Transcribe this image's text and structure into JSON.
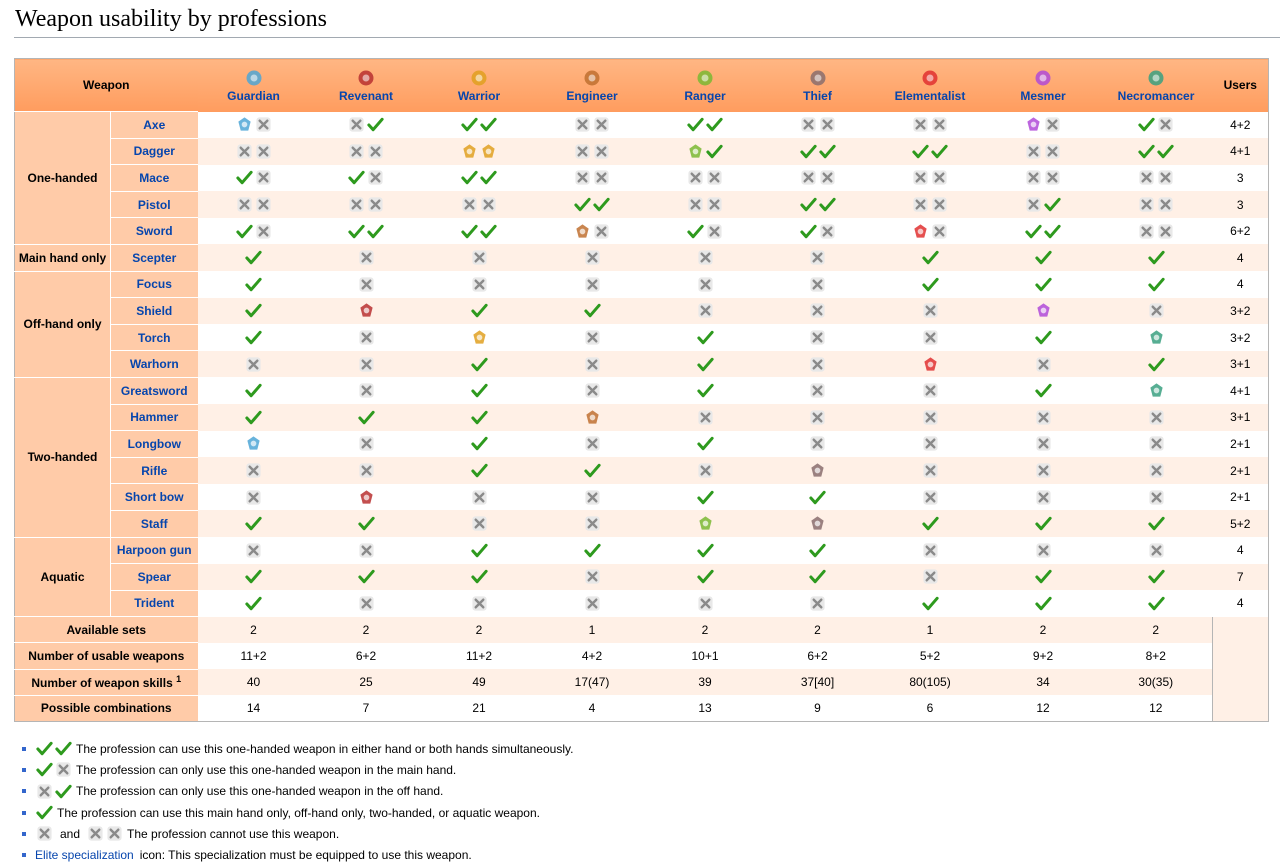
{
  "page": {
    "title": "Weapon usability by professions"
  },
  "table": {
    "weapon_header": "Weapon",
    "users_header": "Users",
    "professions": [
      {
        "name": "Guardian",
        "color": "#4da6d6",
        "icon": "guardian-icon"
      },
      {
        "name": "Revenant",
        "color": "#b83030",
        "icon": "revenant-icon"
      },
      {
        "name": "Warrior",
        "color": "#e0a020",
        "icon": "warrior-icon"
      },
      {
        "name": "Engineer",
        "color": "#c07030",
        "icon": "engineer-icon"
      },
      {
        "name": "Ranger",
        "color": "#7ab832",
        "icon": "ranger-icon"
      },
      {
        "name": "Thief",
        "color": "#8a6d6d",
        "icon": "thief-icon"
      },
      {
        "name": "Elementalist",
        "color": "#e03030",
        "icon": "elementalist-icon"
      },
      {
        "name": "Mesmer",
        "color": "#b04ad8",
        "icon": "mesmer-icon"
      },
      {
        "name": "Necromancer",
        "color": "#3aa080",
        "icon": "necromancer-icon"
      }
    ],
    "groups": [
      {
        "name": "One-handed",
        "rows": [
          {
            "weapon": "Axe",
            "users": "4+2",
            "cells": [
              [
                "E:#4da6d6",
                "X"
              ],
              [
                "X",
                "Y"
              ],
              [
                "Y",
                "Y"
              ],
              [
                "X",
                "X"
              ],
              [
                "Y",
                "Y"
              ],
              [
                "X",
                "X"
              ],
              [
                "X",
                "X"
              ],
              [
                "E:#b04ad8",
                "X"
              ],
              [
                "Y",
                "X"
              ]
            ]
          },
          {
            "weapon": "Dagger",
            "users": "4+1",
            "cells": [
              [
                "X",
                "X"
              ],
              [
                "X",
                "X"
              ],
              [
                "E:#e0a020",
                "E:#e0a020"
              ],
              [
                "X",
                "X"
              ],
              [
                "E:#7ab832",
                "Y"
              ],
              [
                "Y",
                "Y"
              ],
              [
                "Y",
                "Y"
              ],
              [
                "X",
                "X"
              ],
              [
                "Y",
                "Y"
              ]
            ]
          },
          {
            "weapon": "Mace",
            "users": "3",
            "cells": [
              [
                "Y",
                "X"
              ],
              [
                "Y",
                "X"
              ],
              [
                "Y",
                "Y"
              ],
              [
                "X",
                "X"
              ],
              [
                "X",
                "X"
              ],
              [
                "X",
                "X"
              ],
              [
                "X",
                "X"
              ],
              [
                "X",
                "X"
              ],
              [
                "X",
                "X"
              ]
            ]
          },
          {
            "weapon": "Pistol",
            "users": "3",
            "cells": [
              [
                "X",
                "X"
              ],
              [
                "X",
                "X"
              ],
              [
                "X",
                "X"
              ],
              [
                "Y",
                "Y"
              ],
              [
                "X",
                "X"
              ],
              [
                "Y",
                "Y"
              ],
              [
                "X",
                "X"
              ],
              [
                "X",
                "Y"
              ],
              [
                "X",
                "X"
              ]
            ]
          },
          {
            "weapon": "Sword",
            "users": "6+2",
            "cells": [
              [
                "Y",
                "X"
              ],
              [
                "Y",
                "Y"
              ],
              [
                "Y",
                "Y"
              ],
              [
                "E:#c07030",
                "X"
              ],
              [
                "Y",
                "X"
              ],
              [
                "Y",
                "X"
              ],
              [
                "E:#e03030",
                "X"
              ],
              [
                "Y",
                "Y"
              ],
              [
                "X",
                "X"
              ]
            ]
          }
        ]
      },
      {
        "name": "Main hand only",
        "rows": [
          {
            "weapon": "Scepter",
            "users": "4",
            "cells": [
              [
                "Y"
              ],
              [
                "X"
              ],
              [
                "X"
              ],
              [
                "X"
              ],
              [
                "X"
              ],
              [
                "X"
              ],
              [
                "Y"
              ],
              [
                "Y"
              ],
              [
                "Y"
              ]
            ]
          }
        ]
      },
      {
        "name": "Off-hand only",
        "rows": [
          {
            "weapon": "Focus",
            "users": "4",
            "cells": [
              [
                "Y"
              ],
              [
                "X"
              ],
              [
                "X"
              ],
              [
                "X"
              ],
              [
                "X"
              ],
              [
                "X"
              ],
              [
                "Y"
              ],
              [
                "Y"
              ],
              [
                "Y"
              ]
            ]
          },
          {
            "weapon": "Shield",
            "users": "3+2",
            "cells": [
              [
                "Y"
              ],
              [
                "E:#b83030"
              ],
              [
                "Y"
              ],
              [
                "Y"
              ],
              [
                "X"
              ],
              [
                "X"
              ],
              [
                "X"
              ],
              [
                "E:#b04ad8"
              ],
              [
                "X"
              ]
            ]
          },
          {
            "weapon": "Torch",
            "users": "3+2",
            "cells": [
              [
                "Y"
              ],
              [
                "X"
              ],
              [
                "E:#e0a020"
              ],
              [
                "X"
              ],
              [
                "Y"
              ],
              [
                "X"
              ],
              [
                "X"
              ],
              [
                "Y"
              ],
              [
                "E:#3aa080"
              ]
            ]
          },
          {
            "weapon": "Warhorn",
            "users": "3+1",
            "cells": [
              [
                "X"
              ],
              [
                "X"
              ],
              [
                "Y"
              ],
              [
                "X"
              ],
              [
                "Y"
              ],
              [
                "X"
              ],
              [
                "E:#e03030"
              ],
              [
                "X"
              ],
              [
                "Y"
              ]
            ]
          }
        ]
      },
      {
        "name": "Two-handed",
        "rows": [
          {
            "weapon": "Greatsword",
            "users": "4+1",
            "cells": [
              [
                "Y"
              ],
              [
                "X"
              ],
              [
                "Y"
              ],
              [
                "X"
              ],
              [
                "Y"
              ],
              [
                "X"
              ],
              [
                "X"
              ],
              [
                "Y"
              ],
              [
                "E:#3aa080"
              ]
            ]
          },
          {
            "weapon": "Hammer",
            "users": "3+1",
            "cells": [
              [
                "Y"
              ],
              [
                "Y"
              ],
              [
                "Y"
              ],
              [
                "E:#c07030"
              ],
              [
                "X"
              ],
              [
                "X"
              ],
              [
                "X"
              ],
              [
                "X"
              ],
              [
                "X"
              ]
            ]
          },
          {
            "weapon": "Longbow",
            "users": "2+1",
            "cells": [
              [
                "E:#4da6d6"
              ],
              [
                "X"
              ],
              [
                "Y"
              ],
              [
                "X"
              ],
              [
                "Y"
              ],
              [
                "X"
              ],
              [
                "X"
              ],
              [
                "X"
              ],
              [
                "X"
              ]
            ]
          },
          {
            "weapon": "Rifle",
            "users": "2+1",
            "cells": [
              [
                "X"
              ],
              [
                "X"
              ],
              [
                "Y"
              ],
              [
                "Y"
              ],
              [
                "X"
              ],
              [
                "E:#8a6d6d"
              ],
              [
                "X"
              ],
              [
                "X"
              ],
              [
                "X"
              ]
            ]
          },
          {
            "weapon": "Short bow",
            "users": "2+1",
            "cells": [
              [
                "X"
              ],
              [
                "E:#b83030"
              ],
              [
                "X"
              ],
              [
                "X"
              ],
              [
                "Y"
              ],
              [
                "Y"
              ],
              [
                "X"
              ],
              [
                "X"
              ],
              [
                "X"
              ]
            ]
          },
          {
            "weapon": "Staff",
            "users": "5+2",
            "cells": [
              [
                "Y"
              ],
              [
                "Y"
              ],
              [
                "X"
              ],
              [
                "X"
              ],
              [
                "E:#7ab832"
              ],
              [
                "E:#8a6d6d"
              ],
              [
                "Y"
              ],
              [
                "Y"
              ],
              [
                "Y"
              ]
            ]
          }
        ]
      },
      {
        "name": "Aquatic",
        "rows": [
          {
            "weapon": "Harpoon gun",
            "users": "4",
            "cells": [
              [
                "X"
              ],
              [
                "X"
              ],
              [
                "Y"
              ],
              [
                "Y"
              ],
              [
                "Y"
              ],
              [
                "Y"
              ],
              [
                "X"
              ],
              [
                "X"
              ],
              [
                "X"
              ]
            ]
          },
          {
            "weapon": "Spear",
            "users": "7",
            "cells": [
              [
                "Y"
              ],
              [
                "Y"
              ],
              [
                "Y"
              ],
              [
                "X"
              ],
              [
                "Y"
              ],
              [
                "Y"
              ],
              [
                "X"
              ],
              [
                "Y"
              ],
              [
                "Y"
              ]
            ]
          },
          {
            "weapon": "Trident",
            "users": "4",
            "cells": [
              [
                "Y"
              ],
              [
                "X"
              ],
              [
                "X"
              ],
              [
                "X"
              ],
              [
                "X"
              ],
              [
                "X"
              ],
              [
                "Y"
              ],
              [
                "Y"
              ],
              [
                "Y"
              ]
            ]
          }
        ]
      }
    ],
    "summary": [
      {
        "label": "Available sets",
        "values": [
          "2",
          "2",
          "2",
          "1",
          "2",
          "2",
          "1",
          "2",
          "2"
        ]
      },
      {
        "label": "Number of usable weapons",
        "values": [
          "11+2",
          "6+2",
          "11+2",
          "4+2",
          "10+1",
          "6+2",
          "5+2",
          "9+2",
          "8+2"
        ]
      },
      {
        "label": "Number of weapon skills",
        "sup": "1",
        "values": [
          "40",
          "25",
          "49",
          "17(47)",
          "39",
          "37[40]",
          "80(105)",
          "34",
          "30(35)"
        ]
      },
      {
        "label": "Possible combinations",
        "values": [
          "14",
          "7",
          "21",
          "4",
          "13",
          "9",
          "6",
          "12",
          "12"
        ]
      }
    ]
  },
  "legend": [
    {
      "icons": [
        "Y",
        "Y"
      ],
      "text": "The profession can use this one-handed weapon in either hand or both hands simultaneously."
    },
    {
      "icons": [
        "Y",
        "X"
      ],
      "text": "The profession can only use this one-handed weapon in the main hand."
    },
    {
      "icons": [
        "X",
        "Y"
      ],
      "text": "The profession can only use this one-handed weapon in the off hand."
    },
    {
      "icons": [
        "Y"
      ],
      "text": "The profession can use this main hand only, off-hand only, two-handed, or aquatic weapon."
    },
    {
      "icons": [
        "X"
      ],
      "mid": "and",
      "icons2": [
        "X",
        "X"
      ],
      "text": "The profession cannot use this weapon."
    },
    {
      "icons": [],
      "link": "Elite specialization",
      "text": "icon: This specialization must be equipped to use this weapon."
    }
  ],
  "colors": {
    "header": "#ff9c5e",
    "label": "#ffcba8",
    "row_alt": "#fff0e6",
    "link": "#0645ad",
    "check": "#2e9a1e",
    "cross": "#8a8a8a"
  }
}
